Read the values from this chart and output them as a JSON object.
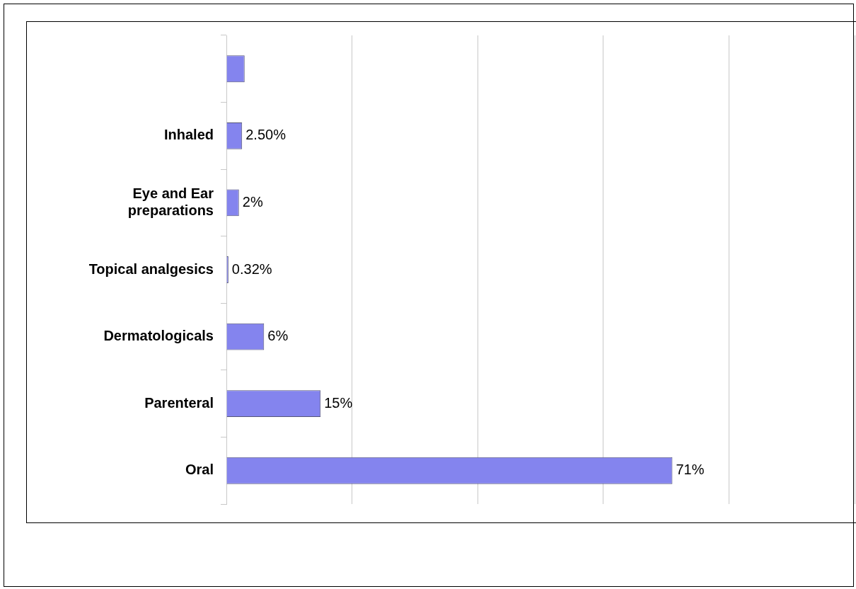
{
  "chart_data": {
    "type": "bar",
    "orientation": "horizontal",
    "categories": [
      null,
      "Inhaled",
      "Eye and Ear preparations",
      "Topical analgesics",
      "Dermatologicals",
      "Parenteral",
      "Oral"
    ],
    "values": [
      2.9,
      2.5,
      2,
      0.32,
      6,
      15,
      71
    ],
    "value_labels": [
      null,
      "2.50%",
      "2%",
      "0.32%",
      "6%",
      "15%",
      "71%"
    ],
    "color": "#8484ee",
    "xlim": [
      0,
      100
    ],
    "xticks": [
      {
        "value": 0,
        "label": null
      },
      {
        "value": 20,
        "label": null
      },
      {
        "value": 40,
        "label": null
      },
      {
        "value": 60,
        "label": null
      },
      {
        "value": 80,
        "label": null
      },
      {
        "value": 100,
        "label": null
      }
    ],
    "tick_labels": "y",
    "grid": "x",
    "legend": false
  }
}
